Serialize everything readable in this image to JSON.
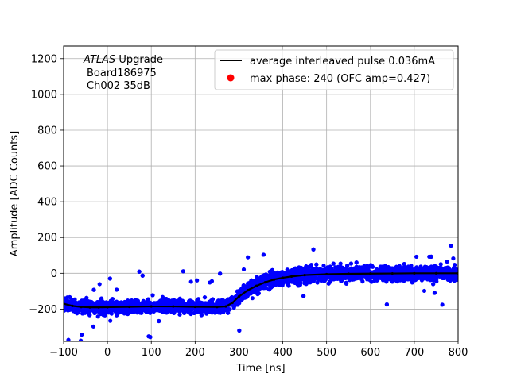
{
  "chart_data": {
    "type": "scatter",
    "title": "",
    "xlabel": "Time [ns]",
    "ylabel": "Amplitude [ADC Counts]",
    "xlim": [
      -100,
      800
    ],
    "ylim": [
      -380,
      1270
    ],
    "xticks": [
      -100,
      0,
      100,
      200,
      300,
      400,
      500,
      600,
      700,
      800
    ],
    "yticks": [
      -200,
      0,
      200,
      400,
      600,
      800,
      1000,
      1200
    ],
    "grid": true,
    "legend_position": "top-right",
    "annotation": {
      "line1_italic": "ATLAS",
      "line1_rest": " Upgrade",
      "line2": "Board186975",
      "line3": "Ch002 35dB"
    },
    "series": [
      {
        "name": "average interleaved pulse 0.036mA",
        "kind": "line",
        "color": "#000000",
        "x": [
          -100,
          -80,
          -60,
          -40,
          -20,
          0,
          50,
          100,
          150,
          200,
          250,
          270,
          285,
          300,
          320,
          340,
          360,
          380,
          400,
          420,
          450,
          500,
          550,
          600,
          650,
          700,
          750,
          800
        ],
        "y": [
          -170,
          -182,
          -188,
          -190,
          -190,
          -189,
          -187,
          -185,
          -185,
          -187,
          -188,
          -185,
          -165,
          -130,
          -95,
          -70,
          -50,
          -35,
          -25,
          -18,
          -10,
          -5,
          -3,
          -2,
          -1,
          0,
          0,
          0
        ]
      },
      {
        "name": "max phase: 240 (OFC amp=0.427)",
        "kind": "marker",
        "color": "#ff0000",
        "x": [],
        "y": []
      },
      {
        "name": "samples",
        "kind": "scatter-band",
        "color": "#0000ff",
        "noise_band": 60,
        "outlier_extent": 200
      }
    ]
  }
}
